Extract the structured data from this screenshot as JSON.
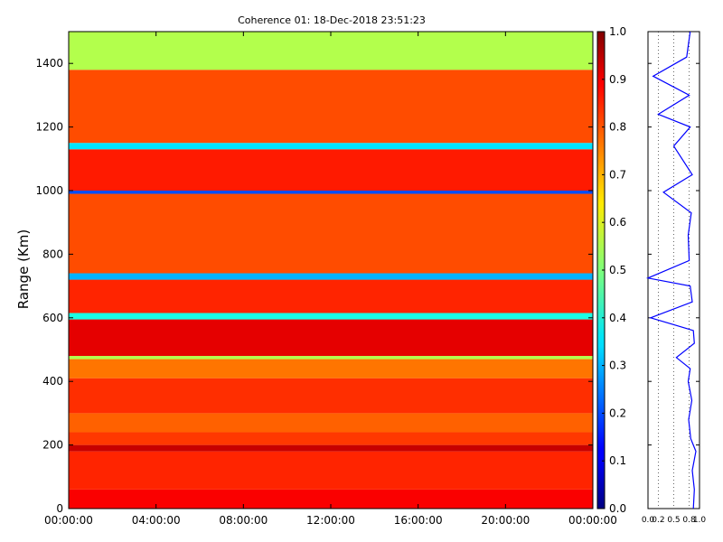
{
  "chart_data": [
    {
      "type": "heatmap",
      "title": "Coherence 01: 18-Dec-2018 23:51:23",
      "xlabel": "",
      "ylabel": "Range (Km)",
      "x_ticks": [
        "00:00:00",
        "04:00:00",
        "08:00:00",
        "12:00:00",
        "16:00:00",
        "20:00:00",
        "00:00:00"
      ],
      "y_ticks": [
        "0",
        "200",
        "400",
        "600",
        "800",
        "1000",
        "1200",
        "1400"
      ],
      "xlim": [
        "00:00:00",
        "24:00:00"
      ],
      "ylim": [
        0,
        1500
      ],
      "colorbar": {
        "colormap": "jet",
        "range": [
          0.0,
          1.0
        ],
        "ticks": [
          "0.0",
          "0.1",
          "0.2",
          "0.3",
          "0.4",
          "0.5",
          "0.6",
          "0.7",
          "0.8",
          "0.9",
          "1.0"
        ]
      },
      "row_profile": [
        {
          "range_km": [
            0,
            60
          ],
          "coherence": 0.88
        },
        {
          "range_km": [
            60,
            180
          ],
          "coherence": 0.84
        },
        {
          "range_km": [
            180,
            200
          ],
          "coherence": 0.93
        },
        {
          "range_km": [
            200,
            240
          ],
          "coherence": 0.82
        },
        {
          "range_km": [
            240,
            300
          ],
          "coherence": 0.78
        },
        {
          "range_km": [
            300,
            410
          ],
          "coherence": 0.83
        },
        {
          "range_km": [
            410,
            470
          ],
          "coherence": 0.76
        },
        {
          "range_km": [
            470,
            480
          ],
          "coherence": 0.55
        },
        {
          "range_km": [
            480,
            595
          ],
          "coherence": 0.9
        },
        {
          "range_km": [
            595,
            615
          ],
          "coherence": 0.4
        },
        {
          "range_km": [
            615,
            720
          ],
          "coherence": 0.84
        },
        {
          "range_km": [
            720,
            740
          ],
          "coherence": 0.3
        },
        {
          "range_km": [
            740,
            990
          ],
          "coherence": 0.8
        },
        {
          "range_km": [
            990,
            1000
          ],
          "coherence": 0.2
        },
        {
          "range_km": [
            1000,
            1130
          ],
          "coherence": 0.85
        },
        {
          "range_km": [
            1130,
            1150
          ],
          "coherence": 0.35
        },
        {
          "range_km": [
            1150,
            1380
          ],
          "coherence": 0.8
        },
        {
          "range_km": [
            1380,
            1500
          ],
          "coherence": 0.55
        }
      ]
    },
    {
      "type": "line",
      "title": "",
      "xlabel": "",
      "ylabel": "",
      "x_ticks": [
        "0.0",
        "0.2",
        "0.5",
        "0.8",
        "1.0"
      ],
      "xlim": [
        0.0,
        1.0
      ],
      "ylim": [
        0,
        1500
      ],
      "color": "#0000ff",
      "points": [
        {
          "range_km": 0,
          "coherence": 0.88
        },
        {
          "range_km": 60,
          "coherence": 0.9
        },
        {
          "range_km": 120,
          "coherence": 0.86
        },
        {
          "range_km": 180,
          "coherence": 0.93
        },
        {
          "range_km": 220,
          "coherence": 0.83
        },
        {
          "range_km": 280,
          "coherence": 0.79
        },
        {
          "range_km": 340,
          "coherence": 0.85
        },
        {
          "range_km": 400,
          "coherence": 0.78
        },
        {
          "range_km": 440,
          "coherence": 0.82
        },
        {
          "range_km": 475,
          "coherence": 0.55
        },
        {
          "range_km": 520,
          "coherence": 0.9
        },
        {
          "range_km": 560,
          "coherence": 0.88
        },
        {
          "range_km": 600,
          "coherence": 0.05
        },
        {
          "range_km": 650,
          "coherence": 0.86
        },
        {
          "range_km": 700,
          "coherence": 0.82
        },
        {
          "range_km": 725,
          "coherence": 0.0
        },
        {
          "range_km": 780,
          "coherence": 0.8
        },
        {
          "range_km": 860,
          "coherence": 0.78
        },
        {
          "range_km": 930,
          "coherence": 0.84
        },
        {
          "range_km": 995,
          "coherence": 0.3
        },
        {
          "range_km": 1050,
          "coherence": 0.86
        },
        {
          "range_km": 1140,
          "coherence": 0.5
        },
        {
          "range_km": 1200,
          "coherence": 0.82
        },
        {
          "range_km": 1240,
          "coherence": 0.2
        },
        {
          "range_km": 1300,
          "coherence": 0.8
        },
        {
          "range_km": 1360,
          "coherence": 0.1
        },
        {
          "range_km": 1420,
          "coherence": 0.75
        },
        {
          "range_km": 1500,
          "coherence": 0.82
        }
      ]
    }
  ]
}
